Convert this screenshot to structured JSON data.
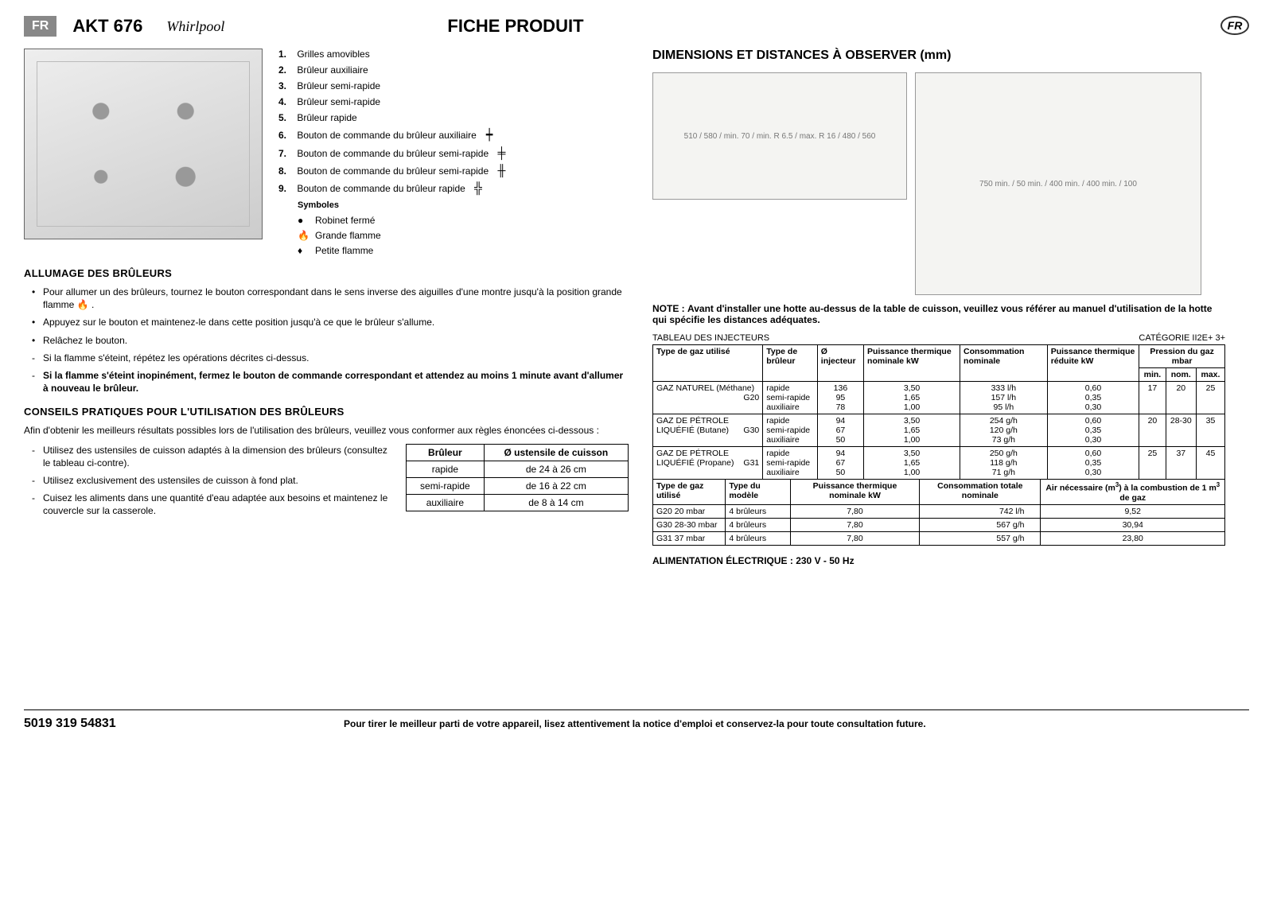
{
  "header": {
    "lang_badge": "FR",
    "model": "AKT 676",
    "brand": "Whirlpool",
    "title": "FICHE PRODUIT",
    "lang_badge_right": "FR"
  },
  "legend": {
    "items": [
      {
        "n": "1.",
        "t": "Grilles amovibles"
      },
      {
        "n": "2.",
        "t": "Brûleur auxiliaire"
      },
      {
        "n": "3.",
        "t": "Brûleur semi-rapide"
      },
      {
        "n": "4.",
        "t": "Brûleur semi-rapide"
      },
      {
        "n": "5.",
        "t": "Brûleur rapide"
      },
      {
        "n": "6.",
        "t": "Bouton de commande du brûleur auxiliaire",
        "icon": "┿"
      },
      {
        "n": "7.",
        "t": "Bouton de commande du brûleur semi-rapide",
        "icon": "╪"
      },
      {
        "n": "8.",
        "t": "Bouton de commande du brûleur semi-rapide",
        "icon": "╫"
      },
      {
        "n": "9.",
        "t": "Bouton de commande du brûleur rapide",
        "icon": "╬"
      }
    ],
    "symbols_title": "Symboles",
    "symbols": [
      {
        "ic": "●",
        "t": "Robinet fermé"
      },
      {
        "ic": "🔥",
        "t": "Grande flamme"
      },
      {
        "ic": "♦",
        "t": "Petite flamme"
      }
    ]
  },
  "ignition": {
    "title": "ALLUMAGE DES BRÛLEURS",
    "b1": "Pour allumer un des brûleurs, tournez le bouton correspondant dans le sens inverse des aiguilles d'une montre jusqu'à la position grande flamme 🔥 .",
    "b2": "Appuyez sur le bouton et maintenez-le dans cette position jusqu'à ce que le brûleur s'allume.",
    "b3": "Relâchez le bouton.",
    "d1": "Si la flamme s'éteint, répétez les opérations décrites ci-dessus.",
    "d2": "Si la flamme s'éteint inopinément, fermez le bouton de commande correspondant et attendez au moins 1 minute avant d'allumer à nouveau le brûleur."
  },
  "tips": {
    "title": "CONSEILS PRATIQUES POUR L'UTILISATION DES BRÛLEURS",
    "intro": "Afin d'obtenir les meilleurs résultats possibles lors de l'utilisation des brûleurs, veuillez vous conformer aux règles énoncées ci-dessous :",
    "t1": "Utilisez des ustensiles de cuisson adaptés à la dimension des brûleurs (consultez le tableau ci-contre).",
    "t2": "Utilisez exclusivement des ustensiles de cuisson à fond plat.",
    "t3": "Cuisez les aliments dans une quantité d'eau adaptée aux besoins et maintenez le couvercle sur la casserole."
  },
  "util_table": {
    "h1": "Brûleur",
    "h2": "Ø ustensile de cuisson",
    "rows": [
      {
        "a": "rapide",
        "b": "de 24 à 26 cm"
      },
      {
        "a": "semi-rapide",
        "b": "de 16 à 22 cm"
      },
      {
        "a": "auxiliaire",
        "b": "de 8 à 14 cm"
      }
    ]
  },
  "right": {
    "title": "DIMENSIONS ET DISTANCES À OBSERVER (mm)",
    "diag1_labels": "510 / 580 / min. 70 / min. R 6.5 / max. R 16 / 480 / 560",
    "diag2_labels": "750 min. / 50 min. / 400 min. / 400 min. / 100",
    "note_label": "NOTE :",
    "note_text": "Avant d'installer une hotte au-dessus de la table de cuisson, veuillez vous référer au manuel d'utilisation de la hotte qui spécifie les distances adéquates.",
    "inj_caption": "TABLEAU DES INJECTEURS",
    "inj_category": "CATÉGORIE II2E+ 3+",
    "inj_headers": {
      "c1": "Type de gaz utilisé",
      "c2": "Type de brûleur",
      "c3": "Ø injecteur",
      "c4": "Puissance thermique nominale kW",
      "c5": "Consommation nominale",
      "c6": "Puissance thermique réduite kW",
      "c7": "Pression du gaz mbar",
      "c7a": "min.",
      "c7b": "nom.",
      "c7c": "max."
    },
    "inj_rows": [
      {
        "gas": "GAZ NATUREL (Méthane)",
        "code": "G20",
        "burners": "rapide\nsemi-rapide\nauxiliaire",
        "inj": "136\n95\n78",
        "pw": "3,50\n1,65\n1,00",
        "cons": "333 l/h\n157 l/h\n95 l/h",
        "red": "0,60\n0,35\n0,30",
        "pmin": "17",
        "pnom": "20",
        "pmax": "25"
      },
      {
        "gas": "GAZ DE PÉTROLE LIQUÉFIÉ (Butane)",
        "code": "G30",
        "burners": "rapide\nsemi-rapide\nauxiliaire",
        "inj": "94\n67\n50",
        "pw": "3,50\n1,65\n1,00",
        "cons": "254 g/h\n120 g/h\n73 g/h",
        "red": "0,60\n0,35\n0,30",
        "pmin": "20",
        "pnom": "28-30",
        "pmax": "35"
      },
      {
        "gas": "GAZ DE PÉTROLE LIQUÉFIÉ (Propane)",
        "code": "G31",
        "burners": "rapide\nsemi-rapide\nauxiliaire",
        "inj": "94\n67\n50",
        "pw": "3,50\n1,65\n1,00",
        "cons": "250 g/h\n118 g/h\n71 g/h",
        "red": "0,60\n0,35\n0,30",
        "pmin": "25",
        "pnom": "37",
        "pmax": "45"
      }
    ],
    "tot_headers": {
      "c1": "Type de gaz utilisé",
      "c2": "Type du modèle",
      "c3": "Puissance thermique nominale kW",
      "c4": "Consommation totale nominale",
      "c5": "Air nécessaire (m³) à la combustion de 1 m³ de gaz"
    },
    "tot_rows": [
      {
        "a": "G20 20 mbar",
        "b": "4 brûleurs",
        "c": "7,80",
        "d": "742 l/h",
        "e": "9,52"
      },
      {
        "a": "G30 28-30 mbar",
        "b": "4 brûleurs",
        "c": "7,80",
        "d": "567 g/h",
        "e": "30,94"
      },
      {
        "a": "G31 37 mbar",
        "b": "4 brûleurs",
        "c": "7,80",
        "d": "557 g/h",
        "e": "23,80"
      }
    ],
    "elec": "ALIMENTATION ÉLECTRIQUE : 230 V - 50 Hz"
  },
  "footer": {
    "pn": "5019 319 54831",
    "text": "Pour tirer le meilleur parti de votre appareil, lisez attentivement la notice d'emploi et conservez-la pour toute consultation future."
  },
  "colors": {
    "badge_bg": "#888888",
    "badge_fg": "#ffffff",
    "border": "#000000",
    "diag_bg": "#f4f4f2"
  }
}
